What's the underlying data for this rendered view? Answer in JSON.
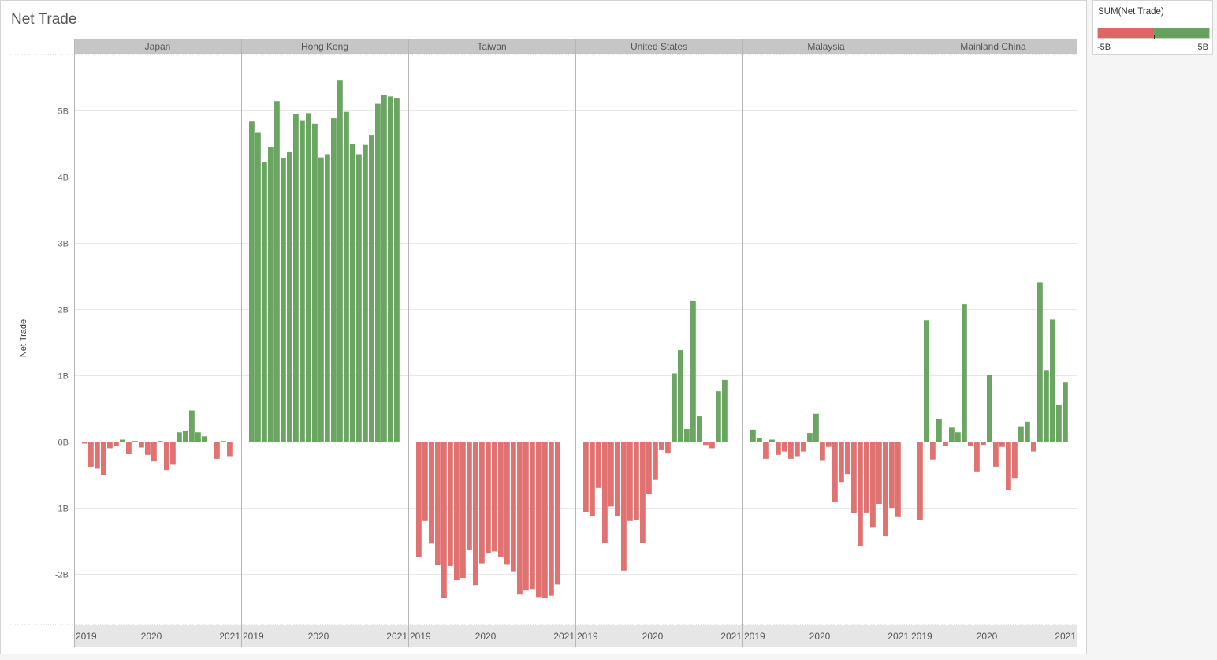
{
  "title": "Net Trade",
  "legend": {
    "title": "SUM(Net Trade)",
    "min_label": "-5B",
    "max_label": "5B",
    "negative_color": "#e06666",
    "positive_color": "#66a25e"
  },
  "colors": {
    "negative": "#e07272",
    "positive": "#6aa561",
    "header_band": "#c6c6c6",
    "axis_band": "#e6e6e6",
    "gridline": "#e8e8e8",
    "divider": "#b5b5b5"
  },
  "chart_data": {
    "type": "bar",
    "title": "Net Trade",
    "ylabel": "Net Trade",
    "xlabel": "",
    "ylim": [
      -2.4,
      5.95
    ],
    "y_ticks": [
      -2,
      -1,
      0,
      1,
      2,
      3,
      4,
      5
    ],
    "y_tick_labels": [
      "-2B",
      "-1B",
      "0B",
      "1B",
      "2B",
      "3B",
      "4B",
      "5B"
    ],
    "x_tick_labels": [
      "2019",
      "2020",
      "2021"
    ],
    "units": "billions",
    "grid": true,
    "panels": [
      {
        "name": "Japan",
        "values": [
          -0.03,
          -0.38,
          -0.41,
          -0.5,
          -0.1,
          -0.06,
          0.03,
          -0.19,
          0.01,
          -0.09,
          -0.2,
          -0.3,
          0.01,
          -0.43,
          -0.35,
          0.14,
          0.16,
          0.47,
          0.14,
          0.08,
          -0.01,
          -0.26,
          0.01,
          -0.22
        ]
      },
      {
        "name": "Hong Kong",
        "values": [
          4.83,
          4.66,
          4.22,
          4.44,
          5.14,
          4.28,
          4.37,
          4.95,
          4.85,
          4.96,
          4.8,
          4.29,
          4.34,
          4.88,
          5.45,
          4.98,
          4.49,
          4.34,
          4.48,
          4.63,
          5.1,
          5.23,
          5.21,
          5.19
        ]
      },
      {
        "name": "Taiwan",
        "values": [
          -1.74,
          -1.2,
          -1.54,
          -1.86,
          -2.36,
          -1.88,
          -2.09,
          -2.06,
          -1.64,
          -2.17,
          -1.84,
          -1.68,
          -1.66,
          -1.74,
          -1.85,
          -1.96,
          -2.3,
          -2.24,
          -2.23,
          -2.35,
          -2.36,
          -2.33,
          -2.16
        ]
      },
      {
        "name": "United States",
        "values": [
          -1.06,
          -1.13,
          -0.7,
          -1.53,
          -0.98,
          -1.12,
          -1.95,
          -1.2,
          -1.18,
          -1.53,
          -0.79,
          -0.58,
          -0.13,
          -0.18,
          1.03,
          1.38,
          0.19,
          2.12,
          0.38,
          -0.05,
          -0.1,
          0.76,
          0.93
        ]
      },
      {
        "name": "Malaysia",
        "values": [
          0.18,
          0.05,
          -0.26,
          0.03,
          -0.2,
          -0.15,
          -0.26,
          -0.22,
          -0.15,
          0.13,
          0.42,
          -0.28,
          -0.08,
          -0.91,
          -0.61,
          -0.49,
          -1.08,
          -1.58,
          -1.07,
          -1.29,
          -0.94,
          -1.43,
          -1.0,
          -1.14
        ]
      },
      {
        "name": "Mainland China",
        "values": [
          -1.18,
          1.83,
          -0.27,
          0.34,
          -0.06,
          0.21,
          0.14,
          2.07,
          -0.06,
          -0.45,
          -0.05,
          1.01,
          -0.38,
          -0.08,
          -0.73,
          -0.55,
          0.23,
          0.3,
          -0.15,
          2.4,
          1.08,
          1.84,
          0.56,
          0.89
        ]
      }
    ]
  }
}
